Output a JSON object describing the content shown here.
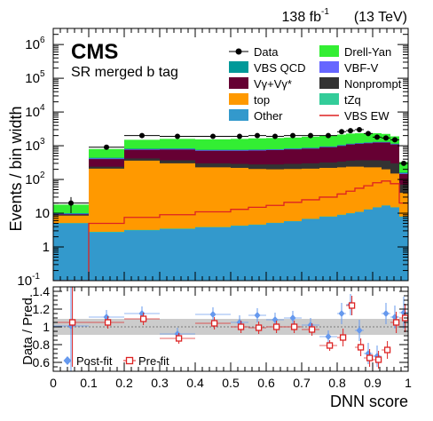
{
  "header": {
    "lumi_label": "138 fb",
    "lumi_exponent": "-1",
    "energy_label": "(13 TeV)",
    "experiment": "CMS",
    "region": "SR merged b tag"
  },
  "chart_data": [
    {
      "type": "area",
      "panel": "main",
      "ylabel": "Events / bin width",
      "yscale": "log",
      "ylim": [
        0.1,
        3000000
      ],
      "xlim": [
        0,
        1
      ],
      "ytick_labels": [
        "10-1",
        "1",
        "10",
        "102",
        "103",
        "104",
        "105",
        "106"
      ],
      "bin_edges": [
        0,
        0.1,
        0.2,
        0.3,
        0.4,
        0.5,
        0.55,
        0.6,
        0.65,
        0.7,
        0.75,
        0.8,
        0.825,
        0.85,
        0.875,
        0.9,
        0.925,
        0.95,
        0.975,
        1.0
      ],
      "stack_order": [
        "Other",
        "tZq",
        "top",
        "Nonprompt",
        "Vγ+Vγ*",
        "VBF-V",
        "VBS QCD",
        "Drell-Yan"
      ],
      "series": [
        {
          "name": "Drell-Yan",
          "color": "#33ee33",
          "values": [
            18,
            800,
            1500,
            1600,
            1550,
            1600,
            1650,
            1700,
            1750,
            1850,
            2000,
            2150,
            2300,
            2350,
            2350,
            2350,
            2250,
            1900,
            330
          ]
        },
        {
          "name": "VBS QCD",
          "color": "#009999",
          "values": [
            10,
            440,
            820,
            830,
            760,
            760,
            770,
            790,
            830,
            870,
            950,
            1050,
            1150,
            1200,
            1250,
            1300,
            1300,
            1150,
            160
          ]
        },
        {
          "name": "VBF-V",
          "color": "#6666ff",
          "values": [
            9.6,
            420,
            790,
            800,
            735,
            735,
            745,
            765,
            805,
            845,
            925,
            1020,
            1120,
            1170,
            1220,
            1270,
            1270,
            1120,
            152
          ]
        },
        {
          "name": "Vγ+Vγ*",
          "color": "#660033",
          "values": [
            9.3,
            400,
            760,
            770,
            710,
            710,
            720,
            740,
            780,
            820,
            900,
            990,
            1090,
            1140,
            1190,
            1240,
            1240,
            1090,
            145
          ]
        },
        {
          "name": "Nonprompt",
          "color": "#333333",
          "values": [
            8.9,
            240,
            420,
            370,
            300,
            290,
            280,
            280,
            290,
            300,
            320,
            340,
            360,
            370,
            370,
            370,
            360,
            300,
            70
          ]
        },
        {
          "name": "top",
          "color": "#ff9900",
          "values": [
            8.5,
            210,
            360,
            300,
            230,
            220,
            205,
            200,
            205,
            210,
            220,
            230,
            240,
            240,
            230,
            230,
            200,
            150,
            40
          ]
        },
        {
          "name": "tZq",
          "color": "#33cc99",
          "values": [
            5.1,
            2.8,
            3.2,
            3.5,
            3.9,
            4.3,
            4.6,
            5.2,
            5.8,
            6.8,
            8.0,
            9.0,
            10.0,
            11.0,
            13.0,
            15.0,
            17.0,
            15.0,
            8.0
          ]
        },
        {
          "name": "Other",
          "color": "#3399cc",
          "values": [
            5.0,
            2.7,
            3.1,
            3.4,
            3.8,
            4.2,
            4.5,
            5.1,
            5.7,
            6.7,
            7.8,
            8.8,
            9.8,
            10.8,
            12.8,
            14.8,
            16.8,
            14.8,
            7.8
          ]
        }
      ],
      "signal": {
        "name": "VBS EW",
        "color": "#dd2222",
        "values": [
          0.1,
          5.0,
          7.5,
          9.0,
          11.0,
          13.0,
          15.0,
          17.0,
          21.0,
          25.0,
          30.0,
          37.0,
          45.0,
          55.0,
          65.0,
          80.0,
          90.0,
          75.0,
          20.0
        ]
      },
      "data": {
        "name": "Data",
        "x": [
          0.05,
          0.15,
          0.25,
          0.35,
          0.45,
          0.525,
          0.575,
          0.625,
          0.675,
          0.725,
          0.775,
          0.8125,
          0.8375,
          0.8625,
          0.8875,
          0.9125,
          0.9375,
          0.9625,
          0.9875
        ],
        "y": [
          20,
          900,
          2000,
          1900,
          1900,
          1900,
          2000,
          1900,
          2000,
          2000,
          2000,
          2600,
          2800,
          3000,
          2300,
          1800,
          1700,
          1500,
          300
        ],
        "yerr": [
          10,
          30,
          45,
          45,
          45,
          45,
          45,
          45,
          45,
          45,
          45,
          50,
          55,
          55,
          50,
          45,
          40,
          40,
          17
        ]
      },
      "legend": {
        "placement": "top-right",
        "entries": [
          {
            "label": "Data",
            "kind": "marker",
            "color": "#000000"
          },
          {
            "label": "Drell-Yan",
            "kind": "box",
            "color": "#33ee33"
          },
          {
            "label": "VBS QCD",
            "kind": "box",
            "color": "#009999"
          },
          {
            "label": "VBF-V",
            "kind": "box",
            "color": "#6666ff"
          },
          {
            "label": "Vγ+Vγ*",
            "kind": "box",
            "color": "#660033"
          },
          {
            "label": "Nonprompt",
            "kind": "box",
            "color": "#333333"
          },
          {
            "label": "top",
            "kind": "box",
            "color": "#ff9900"
          },
          {
            "label": "tZq",
            "kind": "box",
            "color": "#33cc99"
          },
          {
            "label": "Other",
            "kind": "box",
            "color": "#3399cc"
          },
          {
            "label": "VBS EW",
            "kind": "line",
            "color": "#dd2222"
          }
        ]
      }
    },
    {
      "type": "scatter",
      "panel": "ratio",
      "ylabel": "Data / Pred.",
      "xlabel": "DNN score",
      "ylim": [
        0.5,
        1.45
      ],
      "xlim": [
        0,
        1
      ],
      "xtick_labels": [
        "0",
        "0.1",
        "0.2",
        "0.3",
        "0.4",
        "0.5",
        "0.6",
        "0.7",
        "0.8",
        "0.9",
        "1"
      ],
      "ytick_labels": [
        "0.6",
        "0.8",
        "1",
        "1.2",
        "1.4"
      ],
      "uncertainty_band": {
        "x": [
          0,
          1
        ],
        "low": [
          0.91,
          0.91
        ],
        "high": [
          1.09,
          1.09
        ],
        "color": "#cccccc"
      },
      "x": [
        0.05,
        0.15,
        0.25,
        0.35,
        0.45,
        0.525,
        0.575,
        0.625,
        0.675,
        0.725,
        0.775,
        0.8125,
        0.8375,
        0.8625,
        0.8875,
        0.9125,
        0.9375,
        0.9625,
        0.9875
      ],
      "xerr": [
        0.05,
        0.05,
        0.05,
        0.05,
        0.05,
        0.025,
        0.025,
        0.025,
        0.025,
        0.025,
        0.025,
        0.0125,
        0.0125,
        0.0125,
        0.0125,
        0.0125,
        0.0125,
        0.0125,
        0.0125
      ],
      "series": [
        {
          "name": "Post-fit",
          "color": "#6699ee",
          "marker": "diamond",
          "values": [
            1.01,
            1.11,
            1.15,
            0.92,
            1.14,
            1.05,
            1.13,
            1.08,
            1.1,
            1.02,
            0.89,
            1.15,
            1.25,
            0.96,
            0.7,
            0.67,
            1.15,
            1.11,
            1.16
          ],
          "yerr": [
            0.6,
            0.08,
            0.08,
            0.07,
            0.08,
            0.08,
            0.08,
            0.08,
            0.08,
            0.08,
            0.07,
            0.12,
            0.12,
            0.12,
            0.12,
            0.12,
            0.12,
            0.13,
            0.18
          ]
        },
        {
          "name": "Pre-fit",
          "color": "#dd2222",
          "marker": "open-square",
          "values": [
            1.05,
            1.05,
            1.09,
            0.87,
            1.04,
            1.0,
            0.99,
            1.0,
            1.0,
            0.97,
            0.79,
            0.88,
            1.24,
            0.77,
            0.65,
            0.63,
            0.74,
            1.05,
            1.1
          ],
          "yerr": [
            0.5,
            0.07,
            0.07,
            0.06,
            0.07,
            0.07,
            0.07,
            0.07,
            0.07,
            0.07,
            0.06,
            0.1,
            0.11,
            0.1,
            0.1,
            0.1,
            0.1,
            0.12,
            0.16
          ]
        }
      ]
    }
  ]
}
